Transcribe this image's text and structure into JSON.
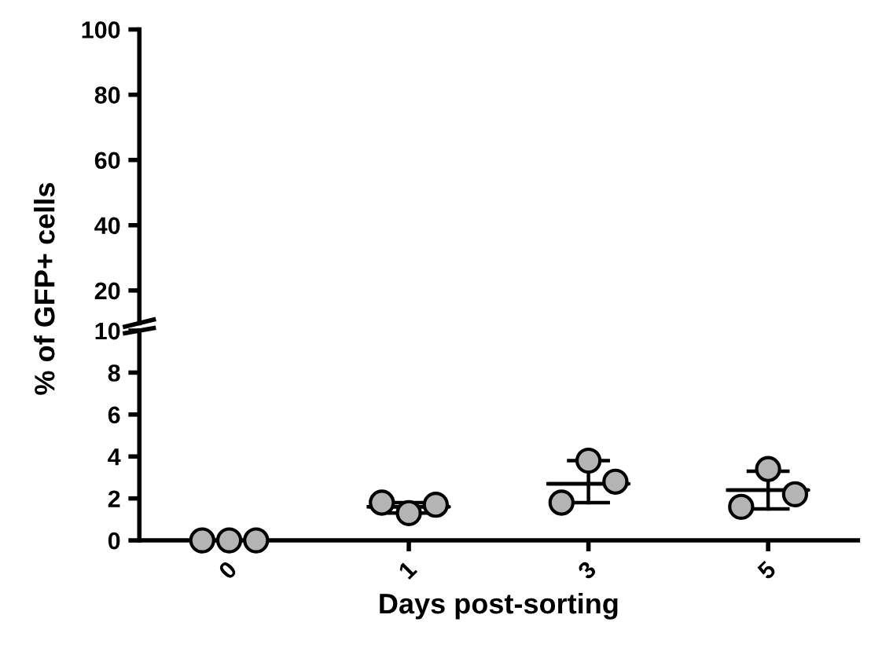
{
  "chart_data": [
    {
      "type": "scatter",
      "categories": [
        "0",
        "1",
        "3",
        "5"
      ],
      "ylim": [
        10,
        100
      ],
      "yticks": [
        20,
        40,
        60,
        80,
        100
      ],
      "tick_labels": "y"
    },
    {
      "type": "scatter",
      "categories": [
        "0",
        "1",
        "3",
        "5"
      ],
      "ylim": [
        0,
        10
      ],
      "yticks": [
        0,
        2,
        4,
        6,
        8,
        10
      ],
      "xlabel": "Days post-sorting",
      "ylabel": "% of GFP+ cells",
      "series": [
        {
          "color": "#b4b4b4",
          "marker": "circle",
          "x": [
            "0",
            "0",
            "0",
            "1",
            "1",
            "1",
            "3",
            "3",
            "3",
            "5",
            "5",
            "5"
          ],
          "values": [
            0,
            0,
            0,
            1.8,
            1.3,
            1.7,
            1.8,
            3.8,
            2.8,
            1.6,
            3.4,
            2.2
          ]
        },
        {
          "type": "box",
          "color": "#000000",
          "boxes": [
            null,
            {
              "low": 1.3,
              "q1": 1.6,
              "median": 1.6,
              "q3": 1.6,
              "high": 1.8
            },
            {
              "low": 1.8,
              "q1": 2.7,
              "median": 2.7,
              "q3": 2.7,
              "high": 3.8
            },
            {
              "low": 1.5,
              "q1": 2.4,
              "median": 2.4,
              "q3": 2.4,
              "high": 3.3
            }
          ]
        }
      ]
    }
  ]
}
